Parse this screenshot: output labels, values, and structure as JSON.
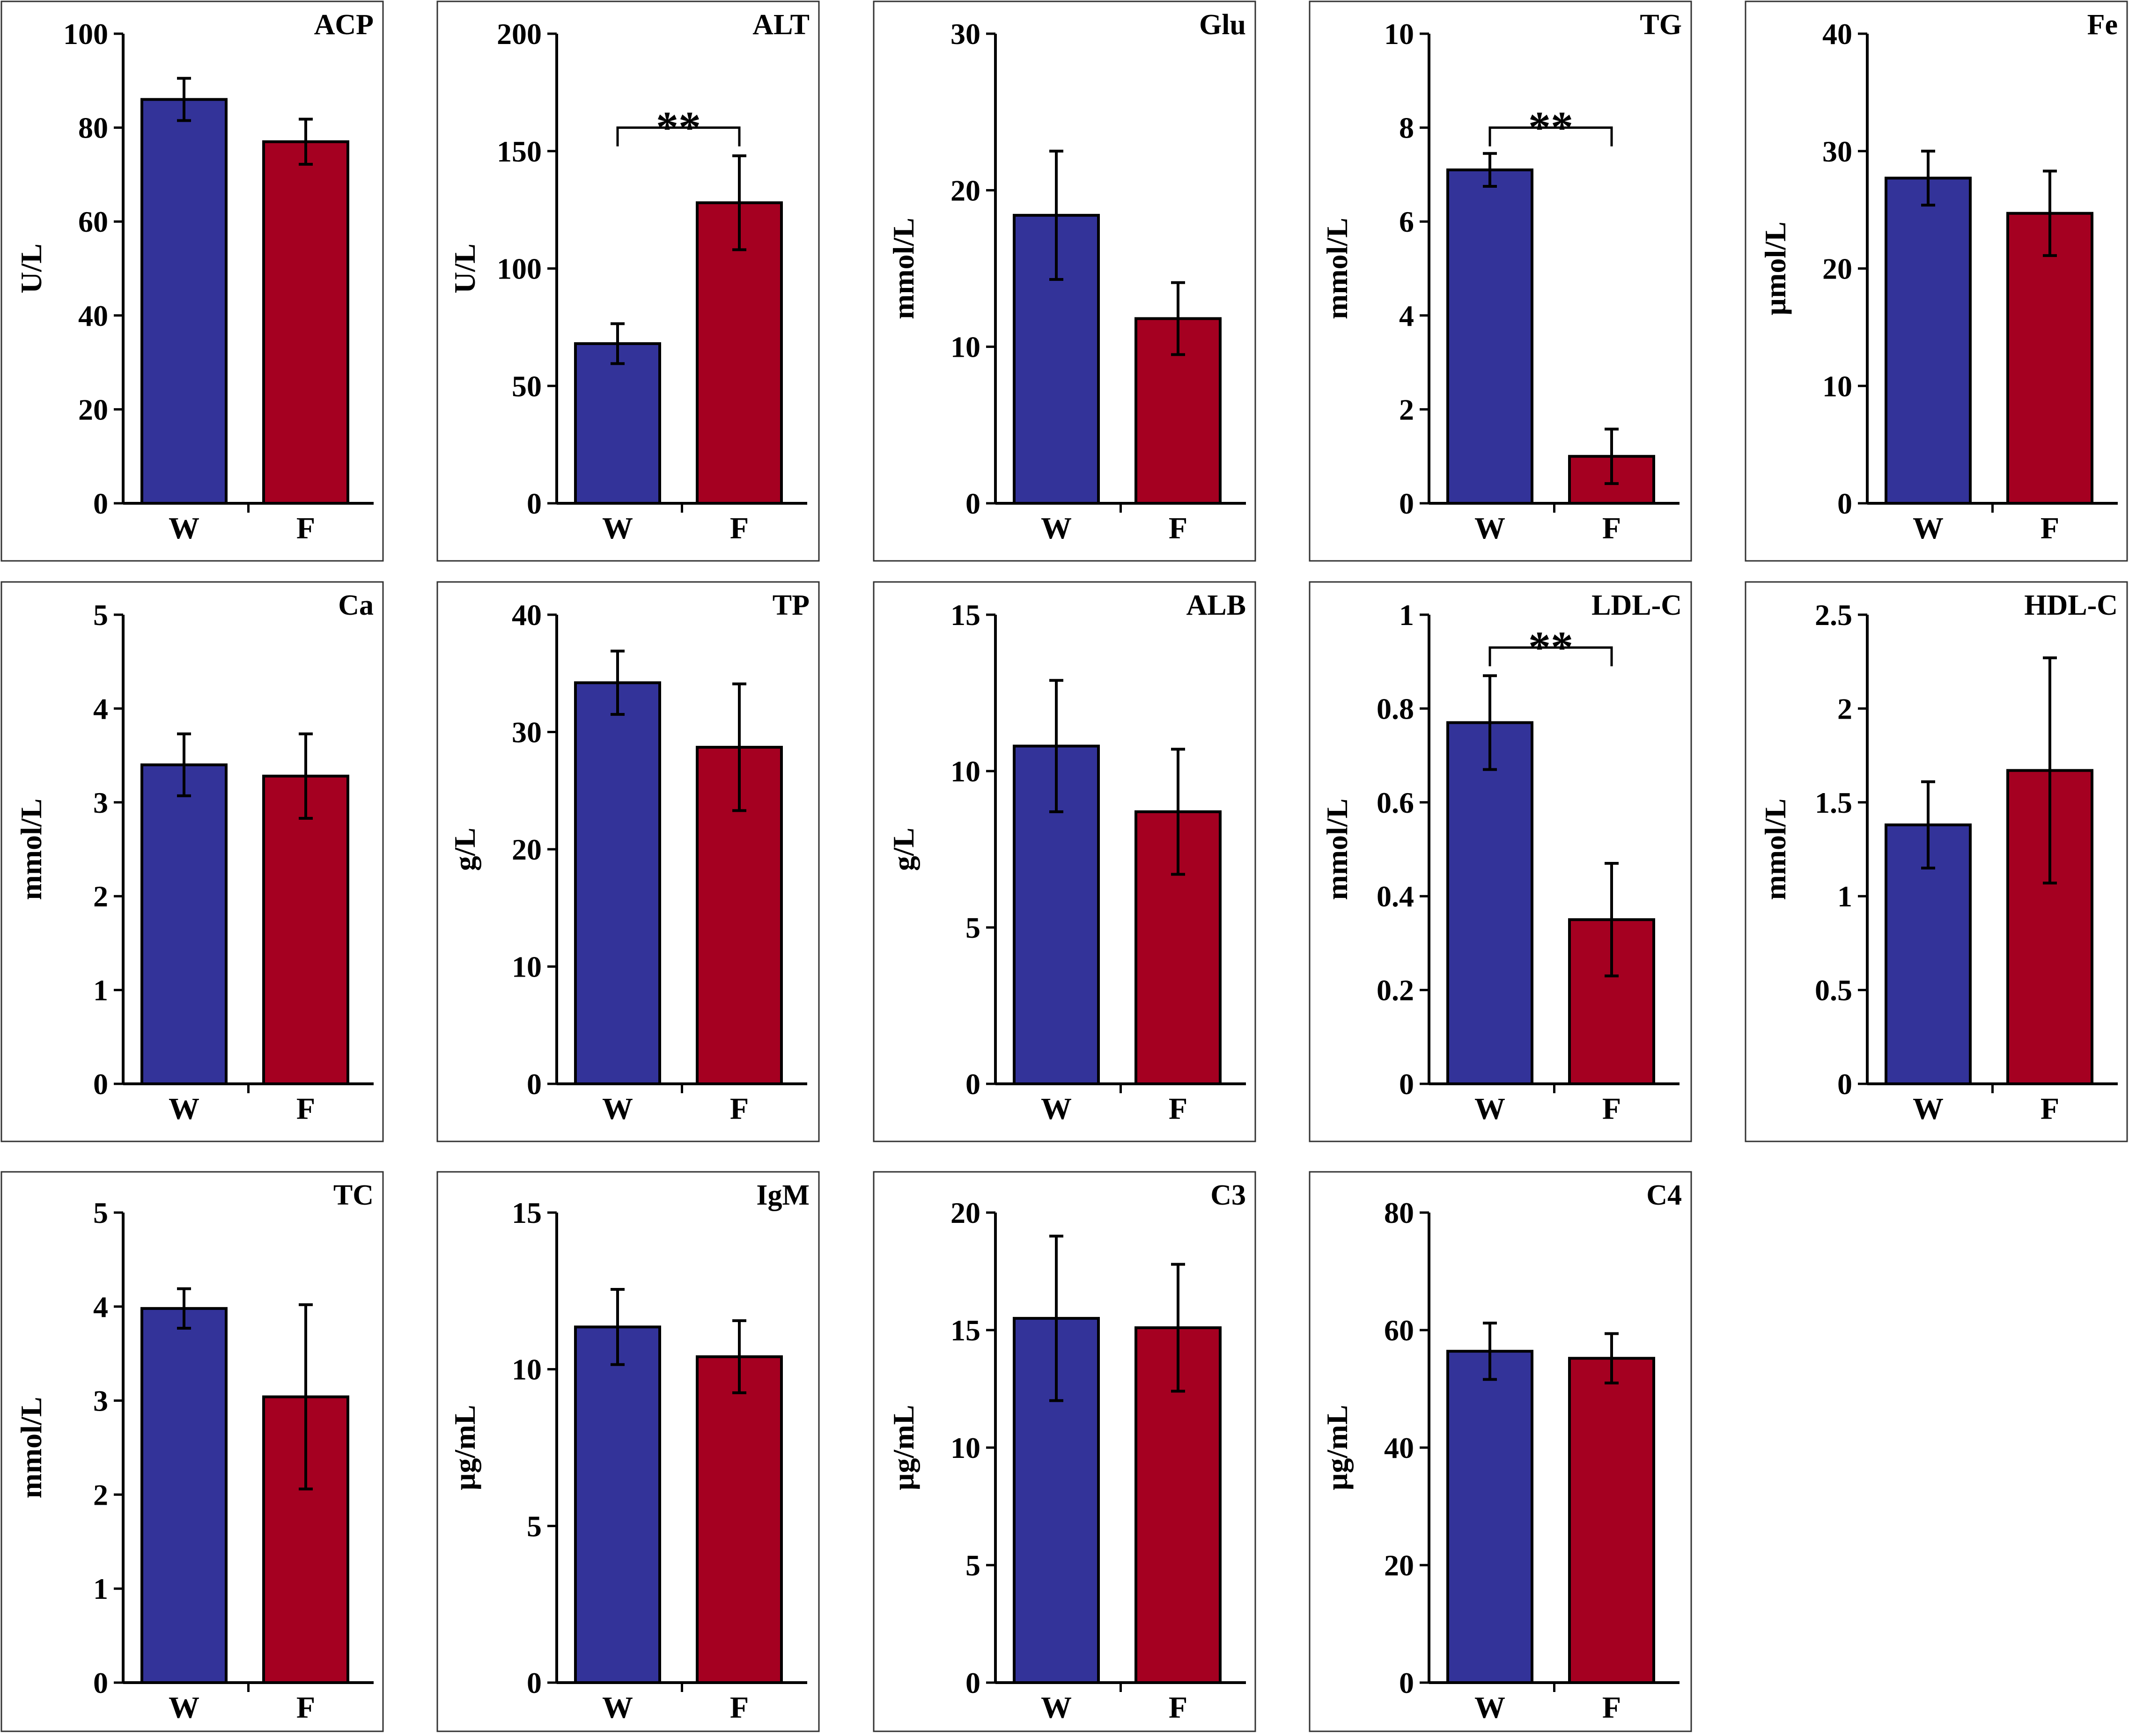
{
  "colors": {
    "W": "#333399",
    "F": "#a50021"
  },
  "chart_data": [
    {
      "type": "bar",
      "title": "ACP",
      "ylabel": "U/L",
      "categories": [
        "W",
        "F"
      ],
      "values": [
        86,
        77
      ],
      "errors": [
        4.5,
        4.8
      ],
      "ylim": [
        0,
        100
      ],
      "yticks": [
        0,
        20,
        40,
        60,
        80,
        100
      ],
      "yticklabels": [
        "0",
        "20",
        "40",
        "60",
        "80",
        "100"
      ],
      "significance": null
    },
    {
      "type": "bar",
      "title": "ALT",
      "ylabel": "U/L",
      "categories": [
        "W",
        "F"
      ],
      "values": [
        68,
        128
      ],
      "errors": [
        8.5,
        20
      ],
      "ylim": [
        0,
        200
      ],
      "yticks": [
        0,
        50,
        100,
        150,
        200
      ],
      "yticklabels": [
        "0",
        "50",
        "100",
        "150",
        "200"
      ],
      "significance": {
        "label": "**",
        "level": 160
      }
    },
    {
      "type": "bar",
      "title": "Glu",
      "ylabel": "mmol/L",
      "categories": [
        "W",
        "F"
      ],
      "values": [
        18.4,
        11.8
      ],
      "errors": [
        4.1,
        2.3
      ],
      "ylim": [
        0,
        30
      ],
      "yticks": [
        0,
        10,
        20,
        30
      ],
      "yticklabels": [
        "0",
        "10",
        "20",
        "30"
      ],
      "significance": null
    },
    {
      "type": "bar",
      "title": "TG",
      "ylabel": "mmol/L",
      "categories": [
        "W",
        "F"
      ],
      "values": [
        7.1,
        1.0
      ],
      "errors": [
        0.35,
        0.58
      ],
      "ylim": [
        0,
        10
      ],
      "yticks": [
        0,
        2,
        4,
        6,
        8,
        10
      ],
      "yticklabels": [
        "0",
        "2",
        "4",
        "6",
        "8",
        "10"
      ],
      "significance": {
        "label": "**",
        "level": 8.0
      }
    },
    {
      "type": "bar",
      "title": "Fe",
      "ylabel": "µmol/L",
      "categories": [
        "W",
        "F"
      ],
      "values": [
        27.7,
        24.7
      ],
      "errors": [
        2.3,
        3.6
      ],
      "ylim": [
        0,
        40
      ],
      "yticks": [
        0,
        10,
        20,
        30,
        40
      ],
      "yticklabels": [
        "0",
        "10",
        "20",
        "30",
        "40"
      ],
      "significance": null
    },
    {
      "type": "bar",
      "title": "Ca",
      "ylabel": "mmol/L",
      "categories": [
        "W",
        "F"
      ],
      "values": [
        3.4,
        3.28
      ],
      "errors": [
        0.33,
        0.45
      ],
      "ylim": [
        0,
        5
      ],
      "yticks": [
        0,
        1,
        2,
        3,
        4,
        5
      ],
      "yticklabels": [
        "0",
        "1",
        "2",
        "3",
        "4",
        "5"
      ],
      "significance": null
    },
    {
      "type": "bar",
      "title": "TP",
      "ylabel": "g/L",
      "categories": [
        "W",
        "F"
      ],
      "values": [
        34.2,
        28.7
      ],
      "errors": [
        2.7,
        5.4
      ],
      "ylim": [
        0,
        40
      ],
      "yticks": [
        0,
        10,
        20,
        30,
        40
      ],
      "yticklabels": [
        "0",
        "10",
        "20",
        "30",
        "40"
      ],
      "significance": null
    },
    {
      "type": "bar",
      "title": "ALB",
      "ylabel": "g/L",
      "categories": [
        "W",
        "F"
      ],
      "values": [
        10.8,
        8.7
      ],
      "errors": [
        2.1,
        2.0
      ],
      "ylim": [
        0,
        15
      ],
      "yticks": [
        0,
        5,
        10,
        15
      ],
      "yticklabels": [
        "0",
        "5",
        "10",
        "15"
      ],
      "significance": null
    },
    {
      "type": "bar",
      "title": "LDL-C",
      "ylabel": "mmol/L",
      "categories": [
        "W",
        "F"
      ],
      "values": [
        0.77,
        0.35
      ],
      "errors": [
        0.1,
        0.12
      ],
      "ylim": [
        0,
        1
      ],
      "yticks": [
        0,
        0.2,
        0.4,
        0.6,
        0.8,
        1
      ],
      "yticklabels": [
        "0",
        "0.2",
        "0.4",
        "0.6",
        "0.8",
        "1"
      ],
      "significance": {
        "label": "**",
        "level": 0.93
      }
    },
    {
      "type": "bar",
      "title": "HDL-C",
      "ylabel": "mmol/L",
      "categories": [
        "W",
        "F"
      ],
      "values": [
        1.38,
        1.67
      ],
      "errors": [
        0.23,
        0.6
      ],
      "ylim": [
        0,
        2.5
      ],
      "yticks": [
        0,
        0.5,
        1,
        1.5,
        2,
        2.5
      ],
      "yticklabels": [
        "0",
        "0.5",
        "1",
        "1.5",
        "2",
        "2.5"
      ],
      "significance": null
    },
    {
      "type": "bar",
      "title": "TC",
      "ylabel": "mmol/L",
      "categories": [
        "W",
        "F"
      ],
      "values": [
        3.98,
        3.04
      ],
      "errors": [
        0.21,
        0.98
      ],
      "ylim": [
        0,
        5
      ],
      "yticks": [
        0,
        1,
        2,
        3,
        4,
        5
      ],
      "yticklabels": [
        "0",
        "1",
        "2",
        "3",
        "4",
        "5"
      ],
      "significance": null
    },
    {
      "type": "bar",
      "title": "IgM",
      "ylabel": "µg/mL",
      "categories": [
        "W",
        "F"
      ],
      "values": [
        11.35,
        10.4
      ],
      "errors": [
        1.2,
        1.15
      ],
      "ylim": [
        0,
        15
      ],
      "yticks": [
        0,
        5,
        10,
        15
      ],
      "yticklabels": [
        "0",
        "5",
        "10",
        "15"
      ],
      "significance": null
    },
    {
      "type": "bar",
      "title": "C3",
      "ylabel": "µg/mL",
      "categories": [
        "W",
        "F"
      ],
      "values": [
        15.5,
        15.1
      ],
      "errors": [
        3.5,
        2.7
      ],
      "ylim": [
        0,
        20
      ],
      "yticks": [
        0,
        5,
        10,
        15,
        20
      ],
      "yticklabels": [
        "0",
        "5",
        "10",
        "15",
        "20"
      ],
      "significance": null
    },
    {
      "type": "bar",
      "title": "C4",
      "ylabel": "µg/mL",
      "categories": [
        "W",
        "F"
      ],
      "values": [
        56.4,
        55.2
      ],
      "errors": [
        4.8,
        4.2
      ],
      "ylim": [
        0,
        80
      ],
      "yticks": [
        0,
        20,
        40,
        60,
        80
      ],
      "yticklabels": [
        "0",
        "20",
        "40",
        "60",
        "80"
      ],
      "significance": null
    }
  ]
}
